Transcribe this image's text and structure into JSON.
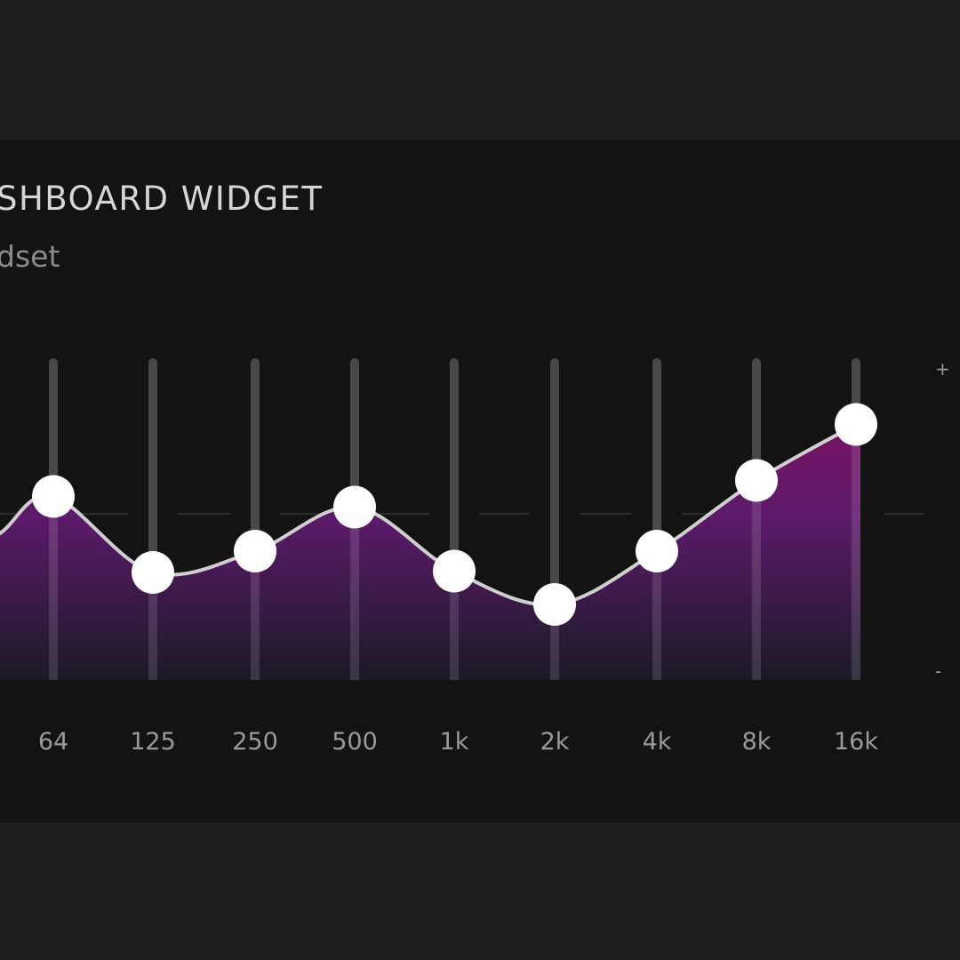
{
  "widget": {
    "title": "SHBOARD WIDGET",
    "subtitle": "dset",
    "plus_label": "+",
    "minus_label": "-"
  },
  "colors": {
    "page_bg": "#1f1f1f",
    "panel_bg": "#131313",
    "fill_top": "#7e1060",
    "fill_mid": "#5c1a6a",
    "fill_bottom": "#1a1a26",
    "curve": "#cfcfcf",
    "knob": "#ffffff",
    "track": "#484848"
  },
  "equalizer": {
    "bands": [
      {
        "label": "64",
        "gain": 1.3
      },
      {
        "label": "125",
        "gain": -4.4
      },
      {
        "label": "250",
        "gain": -2.8
      },
      {
        "label": "500",
        "gain": 0.5
      },
      {
        "label": "1k",
        "gain": -4.3
      },
      {
        "label": "2k",
        "gain": -6.8
      },
      {
        "label": "4k",
        "gain": -2.8
      },
      {
        "label": "8k",
        "gain": 2.5
      },
      {
        "label": "16k",
        "gain": 6.7
      }
    ],
    "range_db": [
      -12,
      12
    ]
  }
}
